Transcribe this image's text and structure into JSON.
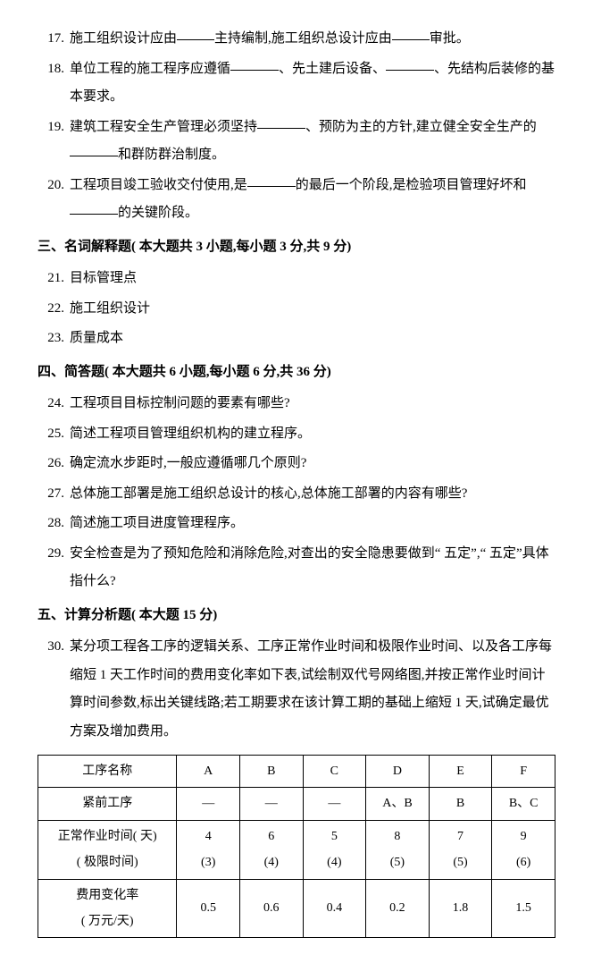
{
  "questions": [
    {
      "num": "17.",
      "text": [
        "施工组织设计应由",
        "主持编制,施工组织总设计应由",
        "审批。"
      ],
      "blanks": [
        "b40",
        "b40"
      ]
    },
    {
      "num": "18.",
      "text": [
        "单位工程的施工程序应遵循",
        "、先土建后设备、",
        "、先结构后装修的基本要求。"
      ],
      "blanks": [
        "b50",
        "b50"
      ]
    },
    {
      "num": "19.",
      "text": [
        "建筑工程安全生产管理必须坚持",
        "、预防为主的方针,建立健全安全生产的",
        "和群防群治制度。"
      ],
      "blanks": [
        "b50",
        "b50"
      ]
    },
    {
      "num": "20.",
      "text": [
        "工程项目竣工验收交付使用,是",
        "的最后一个阶段,是检验项目管理好坏和",
        "的关键阶段。"
      ],
      "blanks": [
        "b50",
        "b50"
      ]
    }
  ],
  "sections": [
    {
      "heading": "三、名词解释题( 本大题共 3 小题,每小题 3 分,共 9 分)",
      "items": [
        {
          "num": "21.",
          "text": "目标管理点"
        },
        {
          "num": "22.",
          "text": "施工组织设计"
        },
        {
          "num": "23.",
          "text": "质量成本"
        }
      ]
    },
    {
      "heading": "四、简答题( 本大题共 6 小题,每小题 6 分,共 36 分)",
      "items": [
        {
          "num": "24.",
          "text": "工程项目目标控制问题的要素有哪些?"
        },
        {
          "num": "25.",
          "text": "简述工程项目管理组织机构的建立程序。"
        },
        {
          "num": "26.",
          "text": "确定流水步距时,一般应遵循哪几个原则?"
        },
        {
          "num": "27.",
          "text": "总体施工部署是施工组织总设计的核心,总体施工部署的内容有哪些?"
        },
        {
          "num": "28.",
          "text": "简述施工项目进度管理程序。"
        },
        {
          "num": "29.",
          "text": "安全检查是为了预知危险和消除危险,对查出的安全隐患要做到“ 五定”,“ 五定”具体指什么?"
        }
      ]
    },
    {
      "heading": "五、计算分析题( 本大题 15 分)",
      "items": [
        {
          "num": "30.",
          "text": "某分项工程各工序的逻辑关系、工序正常作业时间和极限作业时间、以及各工序每缩短 1 天工作时间的费用变化率如下表,试绘制双代号网络图,并按正常作业时间计算时间参数,标出关键线路;若工期要求在该计算工期的基础上缩短 1 天,试确定最优方案及增加费用。"
        }
      ]
    }
  ],
  "table": {
    "header": [
      "工序名称",
      "A",
      "B",
      "C",
      "D",
      "E",
      "F"
    ],
    "rows": [
      [
        "紧前工序",
        "—",
        "—",
        "—",
        "A、B",
        "B",
        "B、C"
      ],
      [
        "正常作业时间( 天)",
        "4",
        "6",
        "5",
        "8",
        "7",
        "9"
      ],
      [
        "( 极限时间)",
        "(3)",
        "(4)",
        "(4)",
        "(5)",
        "(5)",
        "(6)"
      ],
      [
        "费用变化率",
        "0.5",
        "0.6",
        "0.4",
        "0.2",
        "1.8",
        "1.5"
      ],
      [
        "( 万元/天)",
        "",
        "",
        "",
        "",
        "",
        ""
      ]
    ]
  }
}
